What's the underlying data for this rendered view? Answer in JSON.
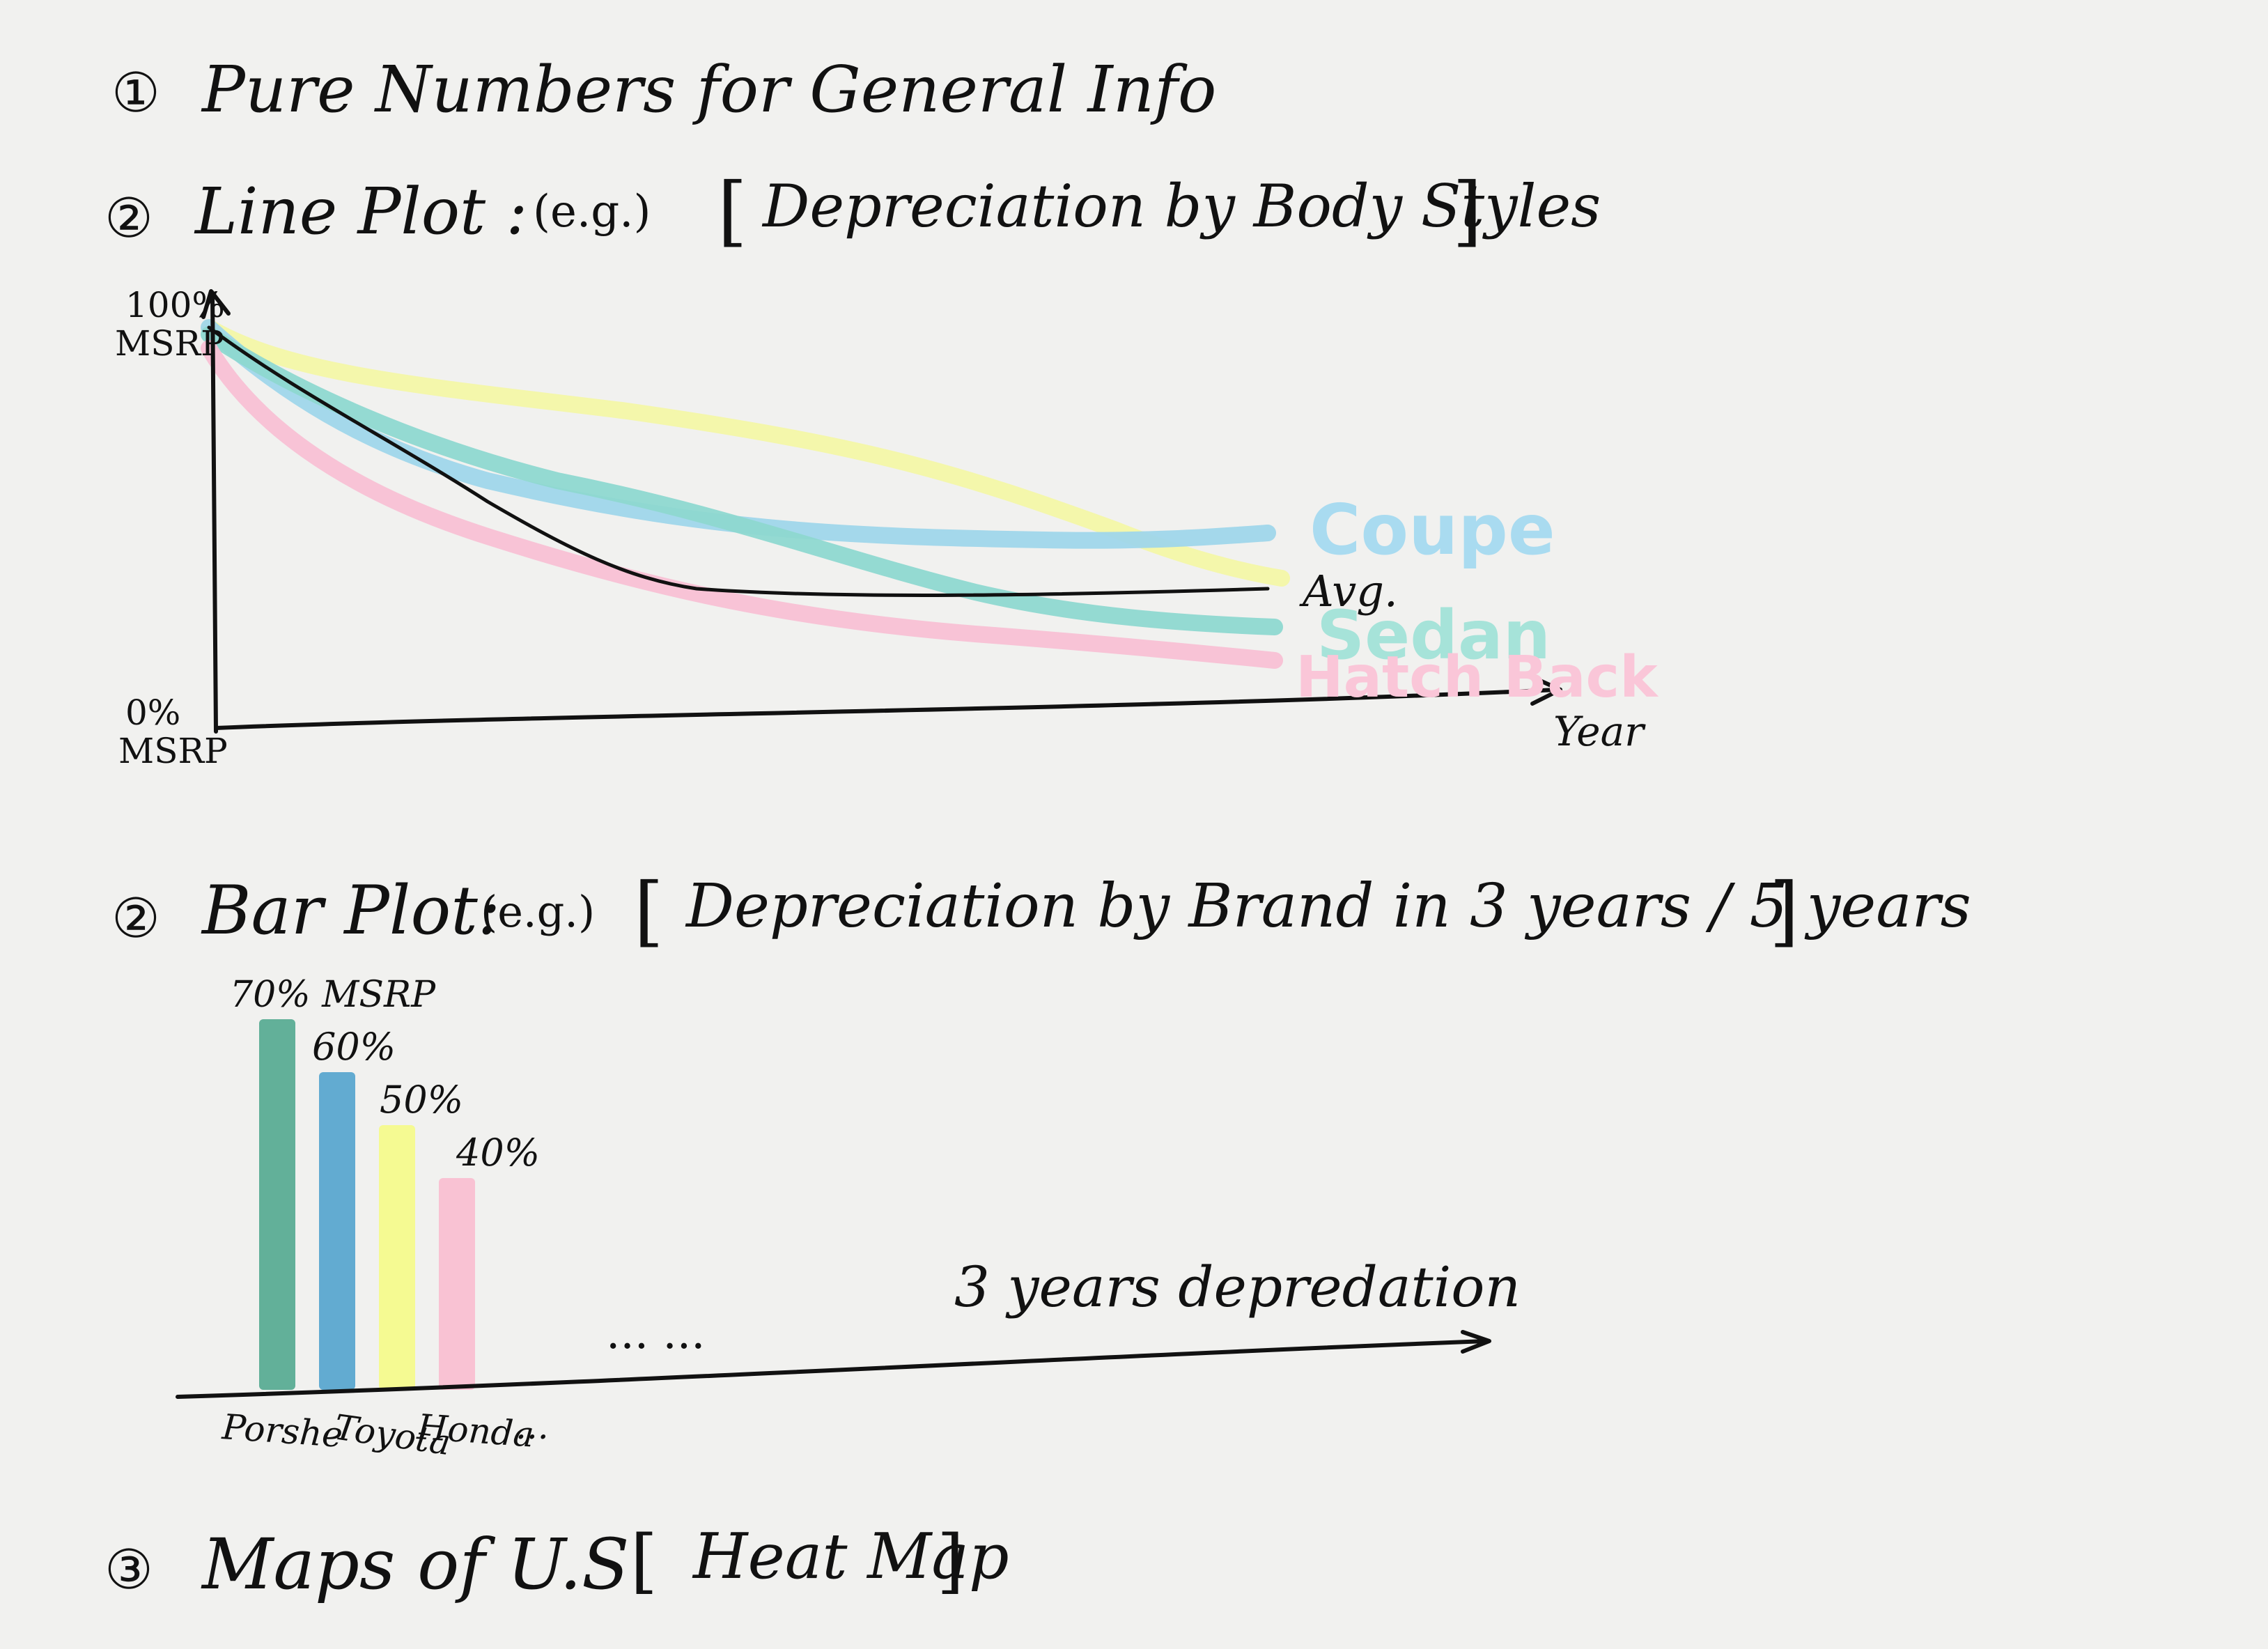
{
  "headings": {
    "h1_marker": "①",
    "h1": "Pure Numbers for General Info",
    "h2_marker": "②",
    "h2": "Line Plot :",
    "h2_eg": "(e.g.)",
    "h2_bracket_open": "[",
    "h2_topic": "Depreciation by Body Styles",
    "h2_bracket_close": "]",
    "h3_marker": "②",
    "h3": "Bar Plot:",
    "h3_eg": "(e.g.)",
    "h3_bracket_open": "[",
    "h3_topic": "Depreciation by Brand in 3 years / 5 years",
    "h3_bracket_close": "]",
    "h4_marker": "③",
    "h4": "Maps of U.S",
    "h4_bracket_open": "[",
    "h4_topic": "Heat Map",
    "h4_bracket_close": "]"
  },
  "line_plot": {
    "y_top_value": "100%",
    "y_top_unit": "MSRP",
    "y_bottom_value": "0%",
    "y_bottom_unit": "MSRP",
    "x_label": "Year",
    "series": [
      {
        "name": "Coupe",
        "color": "#9fd6ea",
        "label_color": "#a9dbf0"
      },
      {
        "name": "Avg.",
        "color": "#111111",
        "label_color": "#111111"
      },
      {
        "name": "Sedan",
        "color": "#8ed8d0",
        "label_color": "#a6e3d9"
      },
      {
        "name": "Hatch Back",
        "color": "#f8c0d4",
        "label_color": "#fac6d8"
      },
      {
        "name": "",
        "color": "#f3f7a6",
        "label_color": "#f3f7a6"
      }
    ]
  },
  "bar_plot": {
    "bars": [
      {
        "category": "Porshe",
        "label": "70% MSRP",
        "value": 70,
        "color": "#5aac94"
      },
      {
        "category": "Toyota",
        "label": "60%",
        "value": 60,
        "color": "#5aa6cf"
      },
      {
        "category": "Honda",
        "label": "50%",
        "value": 50,
        "color": "#f4fa8c"
      },
      {
        "category": "...",
        "label": "40%",
        "value": 40,
        "color": "#f9bfd1"
      }
    ],
    "continuation": "... ...",
    "annotation": "3 years depredation"
  }
}
